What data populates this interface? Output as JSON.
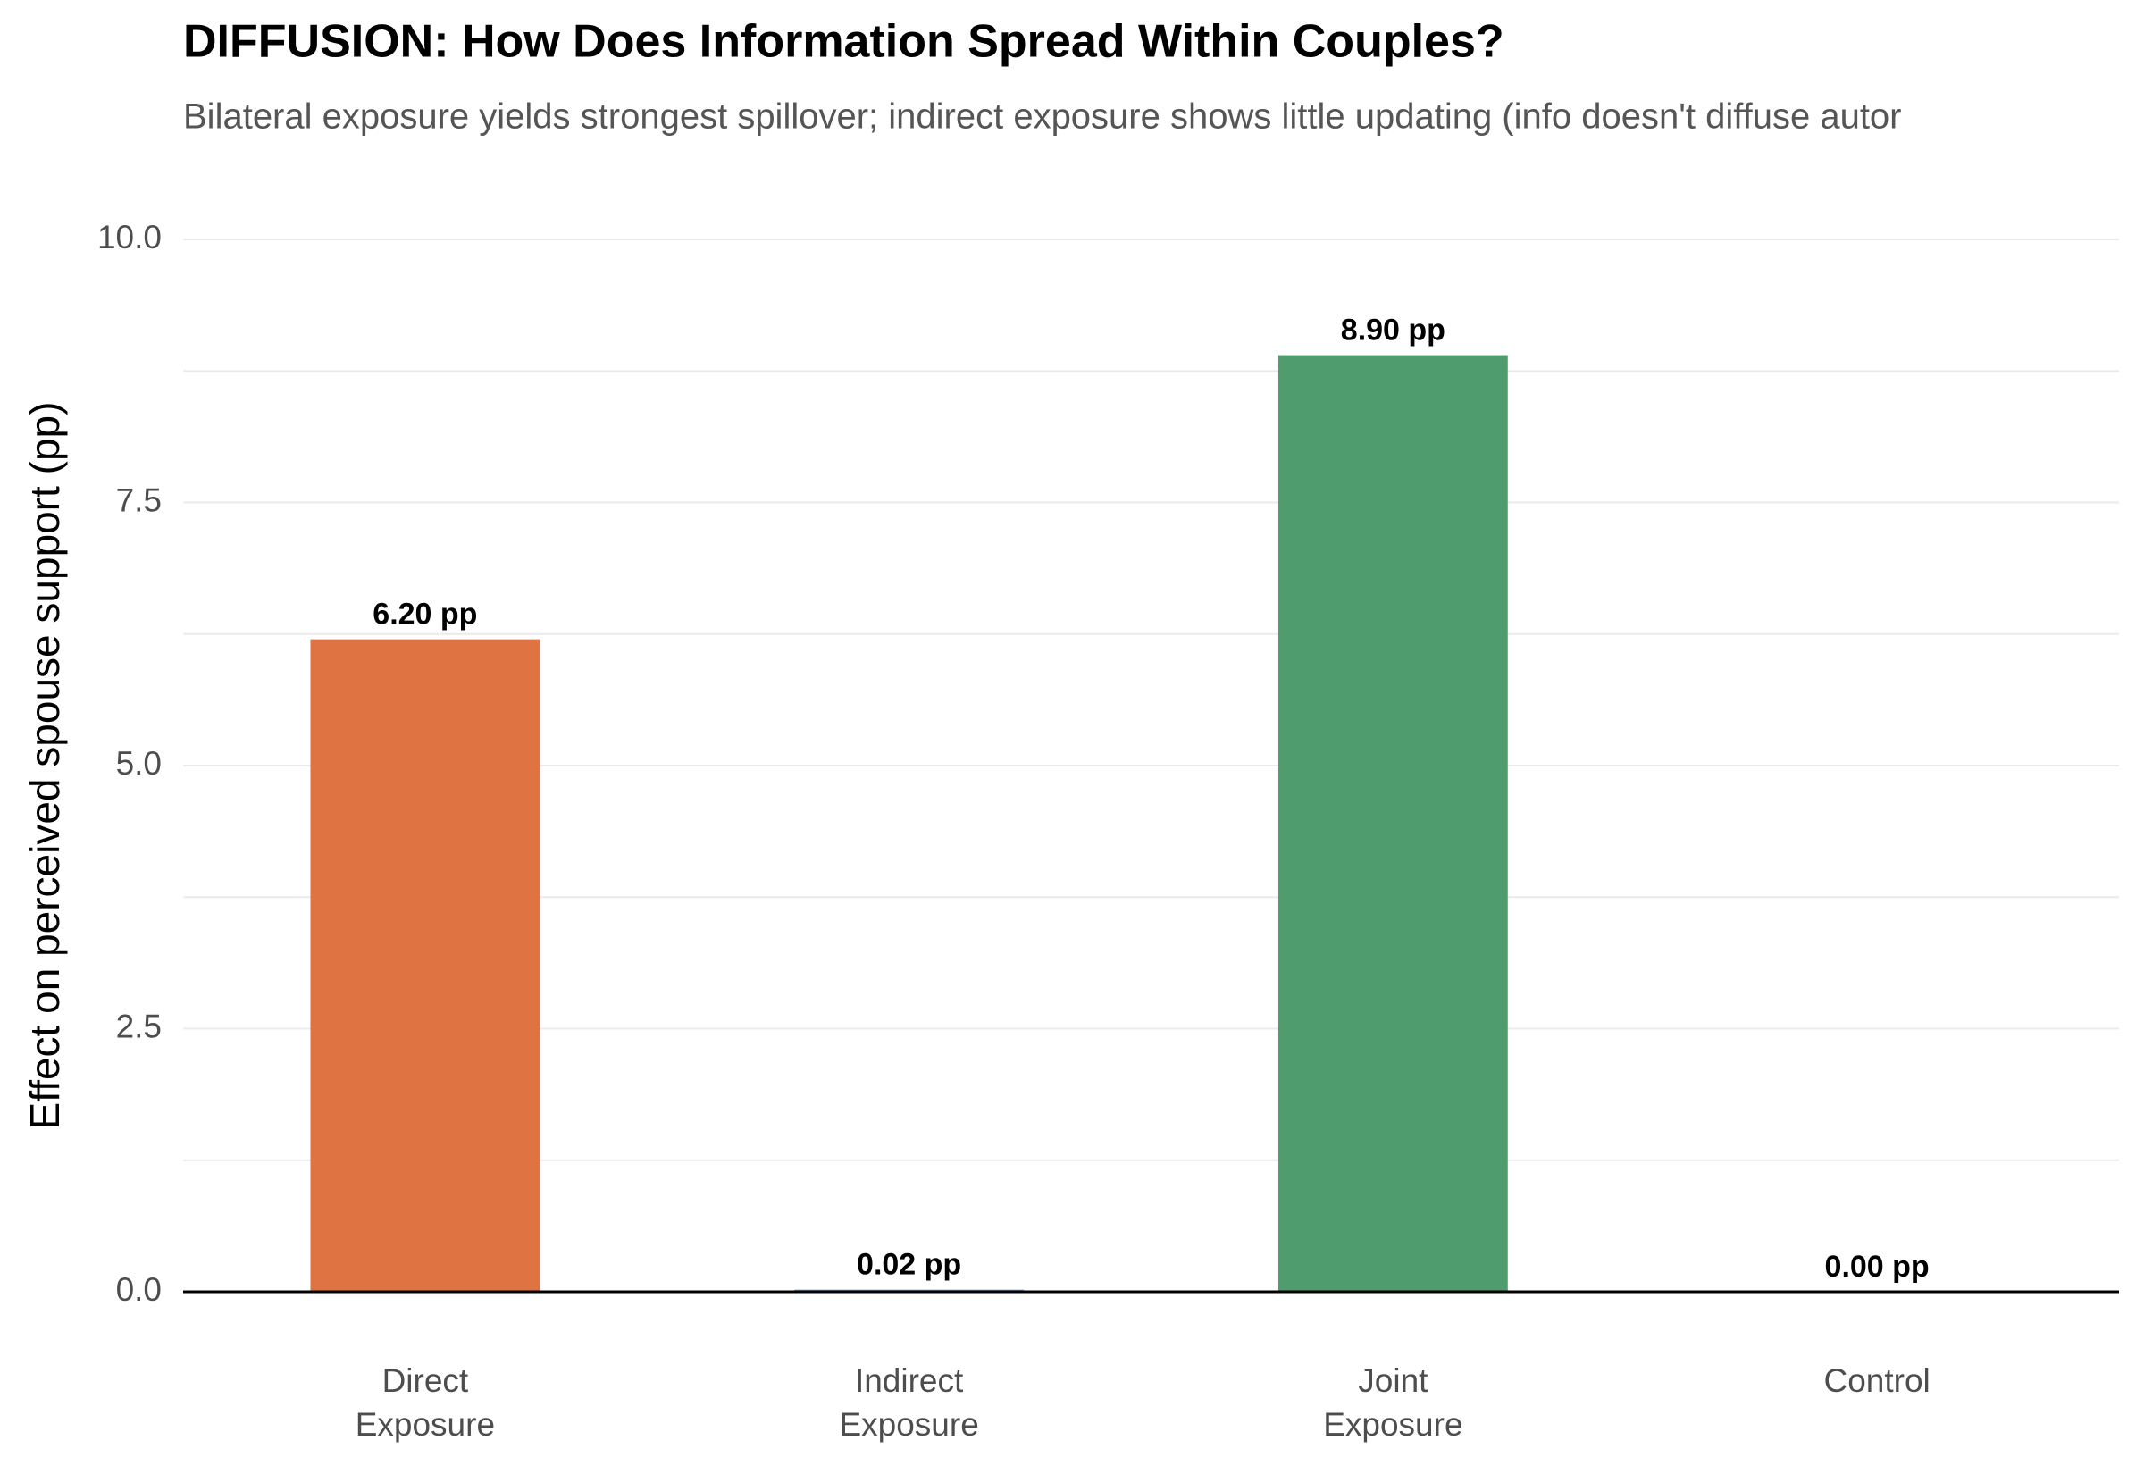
{
  "chart_data": {
    "type": "bar",
    "title": "DIFFUSION: How Does Information Spread Within Couples?",
    "subtitle": "Bilateral exposure yields strongest spillover; indirect exposure shows little updating (info doesn't diffuse autor",
    "y_label": "Effect on perceived spouse support (pp)",
    "categories": [
      "Direct\nExposure",
      "Indirect\nExposure",
      "Joint\nExposure",
      "Control"
    ],
    "values": [
      6.2,
      0.02,
      8.9,
      0
    ],
    "value_labels": [
      "6.20 pp",
      "0.02 pp",
      "8.90 pp",
      "0.00 pp"
    ],
    "colors": [
      "#e07342",
      "#7a9cc6",
      "#4f9c6e",
      "#999999"
    ],
    "ylim": [
      0,
      10
    ],
    "yticks": [
      {
        "value": 0,
        "label": "0.0"
      },
      2.5,
      {
        "value": 5,
        "label": "5.0"
      },
      7.5,
      {
        "value": 10,
        "label": "10.0"
      }
    ],
    "grid": true
  }
}
